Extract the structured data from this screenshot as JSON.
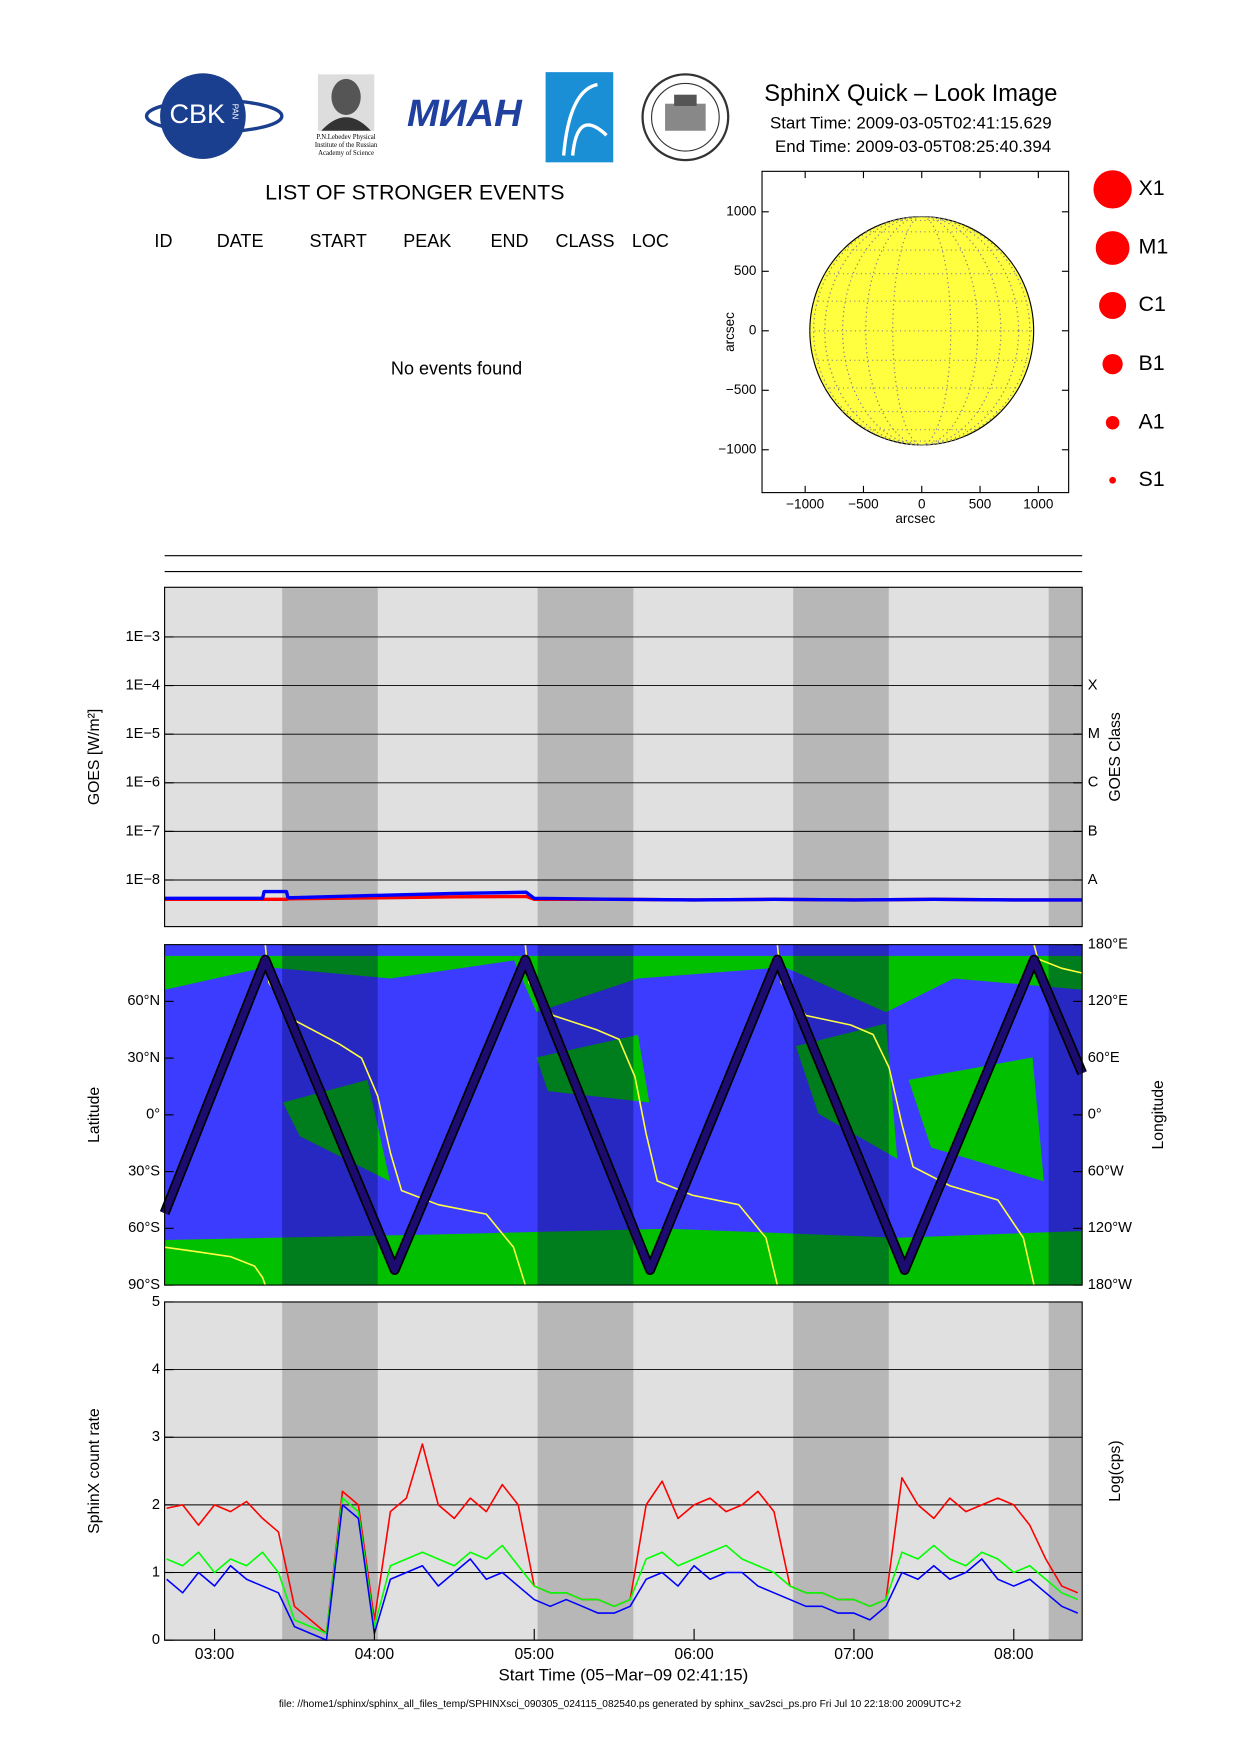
{
  "header": {
    "title": "SphinX Quick – Look Image",
    "start_time": "Start Time: 2009-03-05T02:41:15.629",
    "end_time": "End Time: 2009-03-05T08:25:40.394"
  },
  "logos": {
    "cbk": "CBK",
    "pan": "PAN",
    "lebedev": [
      "P.N.Lebedev Physical",
      "Institute of the Russian",
      "Academy of Science"
    ],
    "mian": "МИАН"
  },
  "events": {
    "title": "LIST OF STRONGER EVENTS",
    "columns": [
      "ID",
      "DATE",
      "START",
      "PEAK",
      "END",
      "CLASS",
      "LOC"
    ],
    "message": "No events found"
  },
  "chart_data": [
    {
      "type": "disk",
      "xlabel": "arcsec",
      "ylabel": "arcsec",
      "xlim": [
        -1370,
        1260
      ],
      "ylim": [
        -1360,
        1340
      ],
      "disk_radius": 960,
      "color": "#ffff40",
      "xticks": [
        {
          "value": -1000,
          "label": "−1000"
        },
        {
          "value": -500,
          "label": "−500"
        },
        0,
        500,
        1000
      ],
      "yticks": [
        {
          "value": -1000,
          "label": "−1000"
        },
        {
          "value": -500,
          "label": "−500"
        },
        0,
        500,
        1000
      ],
      "legend": [
        "X1",
        "M1",
        "C1",
        "B1",
        "A1",
        "S1"
      ],
      "legend_color": "#ff0000"
    },
    {
      "type": "line",
      "ylabel": "GOES [W/m²]",
      "y2label": "GOES Class",
      "ylog": true,
      "grid": true,
      "xlim": [
        2.6875,
        8.4278
      ],
      "ylim": [
        1.1e-09,
        0.0105
      ],
      "yticks": [
        {
          "value": 1e-08,
          "label": "1E−8"
        },
        {
          "value": 1e-07,
          "label": "1E−7"
        },
        {
          "value": 1e-06,
          "label": "1E−6"
        },
        {
          "value": 1e-05,
          "label": "1E−5"
        },
        {
          "value": 0.0001,
          "label": "1E−4"
        },
        {
          "value": 0.001,
          "label": "1E−3"
        }
      ],
      "y2ticks": [
        {
          "value": 1e-08,
          "label": "A"
        },
        {
          "value": 1e-07,
          "label": "B"
        },
        {
          "value": 1e-06,
          "label": "C"
        },
        {
          "value": 1e-05,
          "label": "M"
        },
        {
          "value": 0.0001,
          "label": "X"
        }
      ],
      "night_intervals": [
        [
          3.423,
          4.021
        ],
        [
          5.021,
          5.62
        ],
        [
          6.62,
          7.218
        ],
        [
          8.218,
          8.4278
        ]
      ],
      "x": [
        2.6875,
        3.0,
        3.3,
        3.31,
        3.45,
        3.46,
        4.0,
        4.5,
        4.95,
        5.0,
        5.5,
        6.0,
        6.5,
        7.0,
        7.5,
        8.0,
        8.4278
      ],
      "series": [
        {
          "color": "#ff0000",
          "values": [
            4e-09,
            4e-09,
            4e-09,
            4e-09,
            4e-09,
            4.1e-09,
            4.3e-09,
            4.5e-09,
            4.6e-09,
            4e-09,
            4e-09,
            3.9e-09,
            4e-09,
            3.9e-09,
            4e-09,
            3.9e-09,
            3.9e-09
          ]
        },
        {
          "color": "#0000ff",
          "values": [
            4.2e-09,
            4.2e-09,
            4.2e-09,
            5.8e-09,
            5.8e-09,
            4.3e-09,
            4.8e-09,
            5.3e-09,
            5.6e-09,
            4.2e-09,
            4e-09,
            3.9e-09,
            4e-09,
            3.9e-09,
            4e-09,
            3.9e-09,
            3.9e-09
          ]
        }
      ]
    },
    {
      "type": "line",
      "ylabel": "Latitude",
      "y2label": "Longitude",
      "xlim": [
        2.6875,
        8.4278
      ],
      "ylim": [
        -90,
        90
      ],
      "y2lim": [
        -180,
        180
      ],
      "yticks": [
        {
          "value": -90,
          "label": "90°S"
        },
        {
          "value": -60,
          "label": "60°S"
        },
        {
          "value": -30,
          "label": "30°S"
        },
        {
          "value": 0,
          "label": "0°"
        },
        {
          "value": 30,
          "label": "30°N"
        },
        {
          "value": 60,
          "label": "60°N"
        }
      ],
      "y2ticks": [
        {
          "value": -180,
          "label": "180°W"
        },
        {
          "value": -120,
          "label": "120°W"
        },
        {
          "value": -60,
          "label": "60°W"
        },
        {
          "value": 0,
          "label": "0°"
        },
        {
          "value": 60,
          "label": "60°E"
        },
        {
          "value": 120,
          "label": "120°E"
        },
        {
          "value": 180,
          "label": "180°E"
        }
      ],
      "night_intervals": [
        [
          3.423,
          4.021
        ],
        [
          5.021,
          5.62
        ],
        [
          6.62,
          7.218
        ],
        [
          8.218,
          8.4278
        ]
      ],
      "series": [
        {
          "color": "#ffff40",
          "axis": "y2",
          "x": [
            2.6875,
            2.9,
            3.1,
            3.25,
            3.3,
            3.317,
            3.317,
            3.317,
            3.34,
            3.5,
            3.78,
            3.92,
            4.02,
            4.1,
            4.17,
            4.4,
            4.7,
            4.87,
            4.944,
            4.944,
            4.944,
            4.967,
            5.12,
            5.39,
            5.53,
            5.63,
            5.7,
            5.77,
            5.99,
            6.28,
            6.45,
            6.521,
            6.521,
            6.521,
            6.544,
            6.7,
            6.98,
            7.12,
            7.22,
            7.3,
            7.37,
            7.6,
            7.9,
            8.06,
            8.127,
            8.127,
            8.127,
            8.15,
            8.3,
            8.4278
          ],
          "values": [
            -140,
            -145,
            -150,
            -160,
            -172,
            -180,
            null,
            180,
            140,
            100,
            75,
            60,
            20,
            -40,
            -80,
            -95,
            -105,
            -140,
            -180,
            null,
            180,
            140,
            105,
            90,
            80,
            40,
            -20,
            -70,
            -85,
            -95,
            -130,
            -180,
            null,
            180,
            140,
            105,
            95,
            85,
            50,
            -10,
            -55,
            -75,
            -90,
            -130,
            -180,
            null,
            180,
            165,
            155,
            150
          ]
        },
        {
          "color": "#1c0c70",
          "x": [
            2.6875,
            3.317,
            4.127,
            4.944,
            5.725,
            6.521,
            7.317,
            8.127,
            8.4278
          ],
          "values": [
            -52,
            82,
            -82,
            82,
            -82,
            82,
            -82,
            82,
            22
          ]
        }
      ]
    },
    {
      "type": "line",
      "ylabel": "SphinX count rate",
      "y2label": "Log(cps)",
      "xlabel": "Start Time (05−Mar−09 02:41:15)",
      "grid": true,
      "xlim": [
        2.6875,
        8.4278
      ],
      "ylim": [
        0,
        5
      ],
      "yticks": [
        0,
        1,
        2,
        3,
        4,
        5
      ],
      "xticks": [
        {
          "value": 3,
          "label": "03:00"
        },
        {
          "value": 4,
          "label": "04:00"
        },
        {
          "value": 5,
          "label": "05:00"
        },
        {
          "value": 6,
          "label": "06:00"
        },
        {
          "value": 7,
          "label": "07:00"
        },
        {
          "value": 8,
          "label": "08:00"
        }
      ],
      "night_intervals": [
        [
          3.423,
          4.021
        ],
        [
          5.021,
          5.62
        ],
        [
          6.62,
          7.218
        ],
        [
          8.218,
          8.4278
        ]
      ],
      "x": [
        2.7,
        2.8,
        2.9,
        3.0,
        3.1,
        3.2,
        3.3,
        3.4,
        3.5,
        3.6,
        3.7,
        3.8,
        3.9,
        4.0,
        4.1,
        4.2,
        4.3,
        4.4,
        4.5,
        4.6,
        4.7,
        4.8,
        4.9,
        5.0,
        5.1,
        5.2,
        5.3,
        5.4,
        5.5,
        5.6,
        5.7,
        5.8,
        5.9,
        6.0,
        6.1,
        6.2,
        6.3,
        6.4,
        6.5,
        6.6,
        6.7,
        6.8,
        6.9,
        7.0,
        7.1,
        7.2,
        7.3,
        7.4,
        7.5,
        7.6,
        7.7,
        7.8,
        7.9,
        8.0,
        8.1,
        8.2,
        8.3,
        8.4
      ],
      "series": [
        {
          "color": "#ff0000",
          "values": [
            1.95,
            2.0,
            1.7,
            2.0,
            1.9,
            2.05,
            1.8,
            1.6,
            0.5,
            0.3,
            0.1,
            2.2,
            2.0,
            0.3,
            1.9,
            2.1,
            2.9,
            2.0,
            1.8,
            2.1,
            1.9,
            2.3,
            2.0,
            0.8,
            0.7,
            0.7,
            0.6,
            0.6,
            0.5,
            0.6,
            2.0,
            2.35,
            1.8,
            2.0,
            2.1,
            1.9,
            2.0,
            2.2,
            1.9,
            0.8,
            0.7,
            0.7,
            0.6,
            0.6,
            0.5,
            0.6,
            2.4,
            2.0,
            1.8,
            2.1,
            1.9,
            2.0,
            2.1,
            2.0,
            1.7,
            1.2,
            0.8,
            0.7
          ]
        },
        {
          "color": "#00ff00",
          "values": [
            1.2,
            1.1,
            1.3,
            1.0,
            1.2,
            1.1,
            1.3,
            1.0,
            0.3,
            0.2,
            0.1,
            2.1,
            1.9,
            0.2,
            1.1,
            1.2,
            1.3,
            1.2,
            1.1,
            1.3,
            1.2,
            1.4,
            1.1,
            0.8,
            0.7,
            0.7,
            0.6,
            0.6,
            0.5,
            0.6,
            1.2,
            1.3,
            1.1,
            1.2,
            1.3,
            1.4,
            1.2,
            1.1,
            1.0,
            0.8,
            0.7,
            0.7,
            0.6,
            0.6,
            0.5,
            0.6,
            1.3,
            1.2,
            1.4,
            1.2,
            1.1,
            1.3,
            1.2,
            1.0,
            1.1,
            0.9,
            0.7,
            0.6
          ]
        },
        {
          "color": "#0000ff",
          "values": [
            0.9,
            0.7,
            1.0,
            0.8,
            1.1,
            0.9,
            0.8,
            0.7,
            0.2,
            0.1,
            0.0,
            2.0,
            1.8,
            0.1,
            0.9,
            1.0,
            1.1,
            0.8,
            1.0,
            1.2,
            0.9,
            1.0,
            0.8,
            0.6,
            0.5,
            0.6,
            0.5,
            0.4,
            0.4,
            0.5,
            0.9,
            1.0,
            0.8,
            1.1,
            0.9,
            1.0,
            1.0,
            0.8,
            0.7,
            0.6,
            0.5,
            0.5,
            0.4,
            0.4,
            0.3,
            0.5,
            1.0,
            0.9,
            1.1,
            0.9,
            1.0,
            1.2,
            0.9,
            0.8,
            0.9,
            0.7,
            0.5,
            0.4
          ]
        }
      ]
    }
  ],
  "footer": "file: //home1/sphinx/sphinx_all_files_temp/SPHINXsci_090305_024115_082540.ps generated by sphinx_sav2sci_ps.pro Fri Jul 10 22:18:00 2009UTC+2"
}
